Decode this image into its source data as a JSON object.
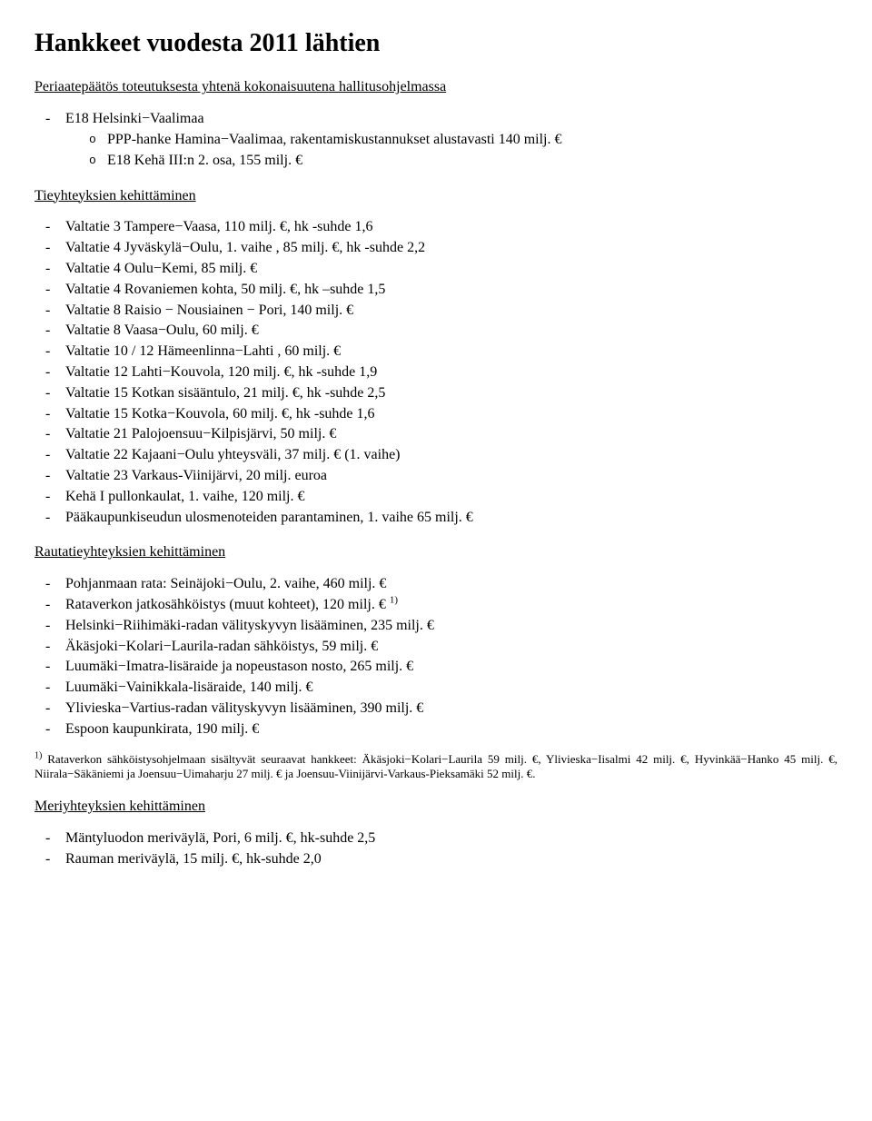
{
  "title": "Hankkeet vuodesta 2011 lähtien",
  "intro": {
    "heading": "Periaatepäätös toteutuksesta yhtenä kokonaisuutena hallitusohjelmassa",
    "items": [
      {
        "text": "E18 Helsinki−Vaalimaa",
        "sub": [
          "PPP-hanke Hamina−Vaalimaa, rakentamiskustannukset alustavasti 140 milj. €",
          "E18 Kehä III:n 2. osa, 155 milj. €"
        ]
      }
    ]
  },
  "road": {
    "heading": "Tieyhteyksien kehittäminen",
    "items": [
      "Valtatie 3 Tampere−Vaasa, 110 milj. €, hk -suhde 1,6",
      "Valtatie 4 Jyväskylä−Oulu, 1. vaihe , 85 milj. €, hk -suhde 2,2",
      "Valtatie 4 Oulu−Kemi, 85 milj. €",
      "Valtatie 4 Rovaniemen kohta, 50 milj. €, hk –suhde 1,5",
      "Valtatie 8 Raisio − Nousiainen − Pori, 140 milj. €",
      "Valtatie 8 Vaasa−Oulu, 60 milj. €",
      "Valtatie 10 / 12 Hämeenlinna−Lahti , 60 milj. €",
      "Valtatie 12 Lahti−Kouvola, 120 milj. €, hk -suhde 1,9",
      "Valtatie 15 Kotkan sisääntulo, 21 milj. €, hk -suhde 2,5",
      "Valtatie 15 Kotka−Kouvola, 60 milj. €, hk -suhde 1,6",
      "Valtatie 21 Palojoensuu−Kilpisjärvi, 50 milj. €",
      "Valtatie 22 Kajaani−Oulu yhteysväli, 37 milj. € (1. vaihe)",
      "Valtatie 23 Varkaus-Viinijärvi, 20 milj. euroa",
      "Kehä I pullonkaulat, 1. vaihe, 120 milj. €",
      "Pääkaupunkiseudun ulosmenoteiden parantaminen, 1. vaihe 65 milj. €"
    ]
  },
  "rail": {
    "heading": "Rautatieyhteyksien kehittäminen",
    "items": [
      {
        "text": "Pohjanmaan rata: Seinäjoki−Oulu, 2. vaihe, 460 milj. €"
      },
      {
        "text": "Rataverkon jatkosähköistys (muut kohteet), 120 milj. € ",
        "note": "1)"
      },
      {
        "text": "Helsinki−Riihimäki-radan välityskyvyn lisääminen, 235 milj. €"
      },
      {
        "text": "Äkäsjoki−Kolari−Laurila-radan sähköistys, 59 milj. €"
      },
      {
        "text": "Luumäki−Imatra-lisäraide ja nopeustason nosto, 265 milj. €"
      },
      {
        "text": "Luumäki−Vainikkala-lisäraide, 140 milj. €"
      },
      {
        "text": "Ylivieska−Vartius-radan välityskyvyn lisääminen, 390 milj. €"
      },
      {
        "text": "Espoon kaupunkirata, 190 milj. €"
      }
    ],
    "footnote_marker": "1)",
    "footnote_text": " Rataverkon sähköistysohjelmaan sisältyvät seuraavat hankkeet: Äkäsjoki−Kolari−Laurila 59 milj. €, Ylivieska−Iisalmi 42 milj. €, Hyvinkää−Hanko 45 milj. €, Niirala−Säkäniemi ja Joensuu−Uimaharju 27 milj. € ja Joensuu-Viinijärvi-Varkaus-Pieksamäki 52 milj. €."
  },
  "sea": {
    "heading": "Meriyhteyksien kehittäminen",
    "items": [
      "Mäntyluodon meriväylä, Pori, 6 milj. €, hk-suhde  2,5",
      "Rauman meriväylä, 15 milj. €, hk-suhde 2,0"
    ]
  }
}
